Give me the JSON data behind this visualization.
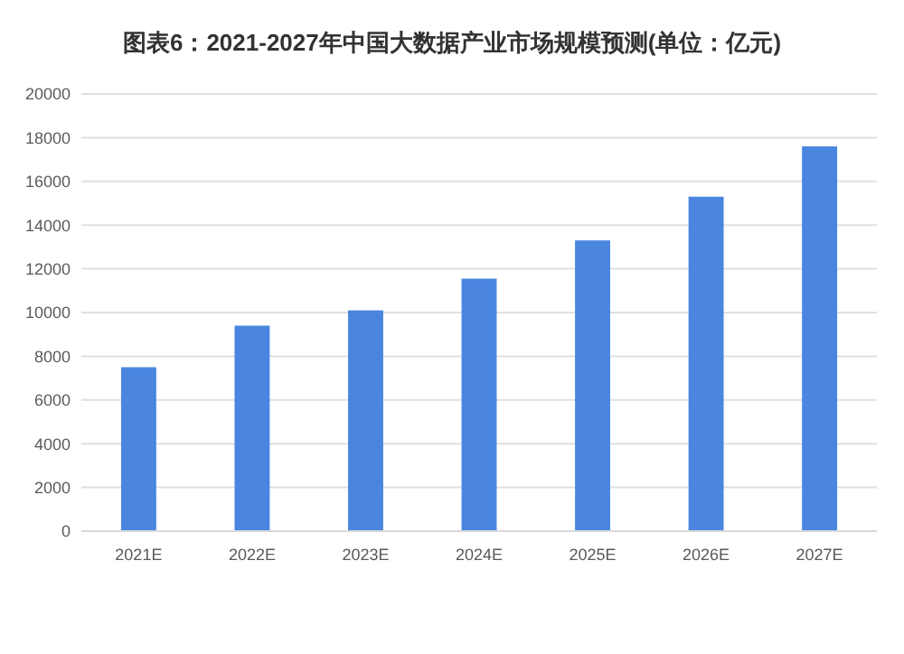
{
  "chart_data": {
    "type": "bar",
    "title": "图表6：2021-2027年中国大数据产业市场规模预测(单位：亿元)",
    "categories": [
      "2021E",
      "2022E",
      "2023E",
      "2024E",
      "2025E",
      "2026E",
      "2027E"
    ],
    "values": [
      7500,
      9400,
      10100,
      11550,
      13300,
      15300,
      17600
    ],
    "color": "#4a86e0",
    "ylim": [
      0,
      20000
    ],
    "yticks": [
      0,
      2000,
      4000,
      6000,
      8000,
      10000,
      12000,
      14000,
      16000,
      18000,
      20000
    ],
    "grid": "y"
  }
}
